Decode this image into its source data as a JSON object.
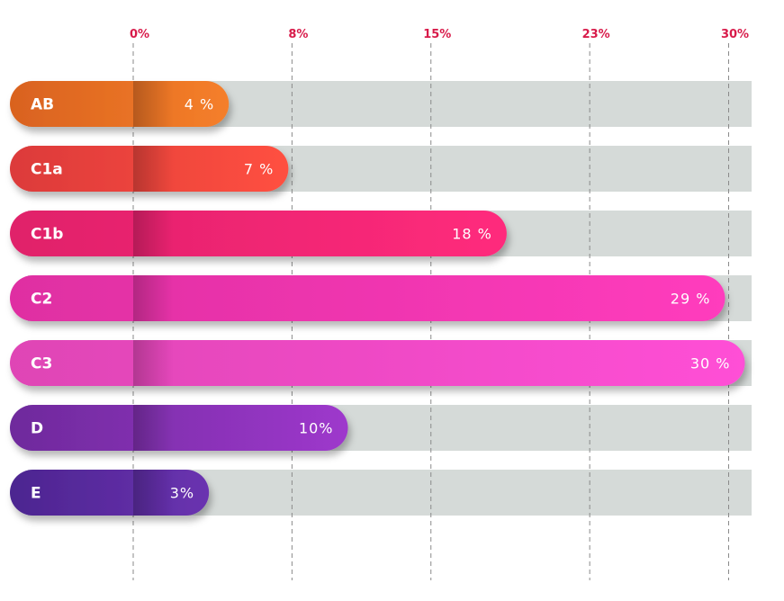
{
  "chart_data": {
    "type": "bar",
    "orientation": "horizontal",
    "title": "",
    "xlabel": "",
    "ylabel": "",
    "categories": [
      "AB",
      "C1a",
      "C1b",
      "C2",
      "C3",
      "D",
      "E"
    ],
    "values": [
      4,
      7,
      18,
      29,
      30,
      10,
      3
    ],
    "value_labels": [
      "4 %",
      "7 %",
      "18 %",
      "29 %",
      "30 %",
      "10%",
      "3%"
    ],
    "x_ticks": [
      0,
      8,
      15,
      23,
      30
    ],
    "x_tick_labels": [
      "0%",
      "8%",
      "15%",
      "23%",
      "30%"
    ],
    "xlim": [
      0,
      30
    ],
    "grid": "vertical dashed",
    "legend": "none",
    "colors": {
      "tick_label": "#d81b4a",
      "track": "#d5dad8",
      "grid": "#8a8a8a",
      "bars": [
        [
          "#d9621f",
          "#f57f2a"
        ],
        [
          "#dc3a3a",
          "#ff5040"
        ],
        [
          "#e0206a",
          "#ff2b7c"
        ],
        [
          "#df2fa2",
          "#ff3cbd"
        ],
        [
          "#df45b5",
          "#ff4fd6"
        ],
        [
          "#6e2a9c",
          "#9e38cc"
        ],
        [
          "#4c2590",
          "#6a32b0"
        ]
      ]
    }
  }
}
